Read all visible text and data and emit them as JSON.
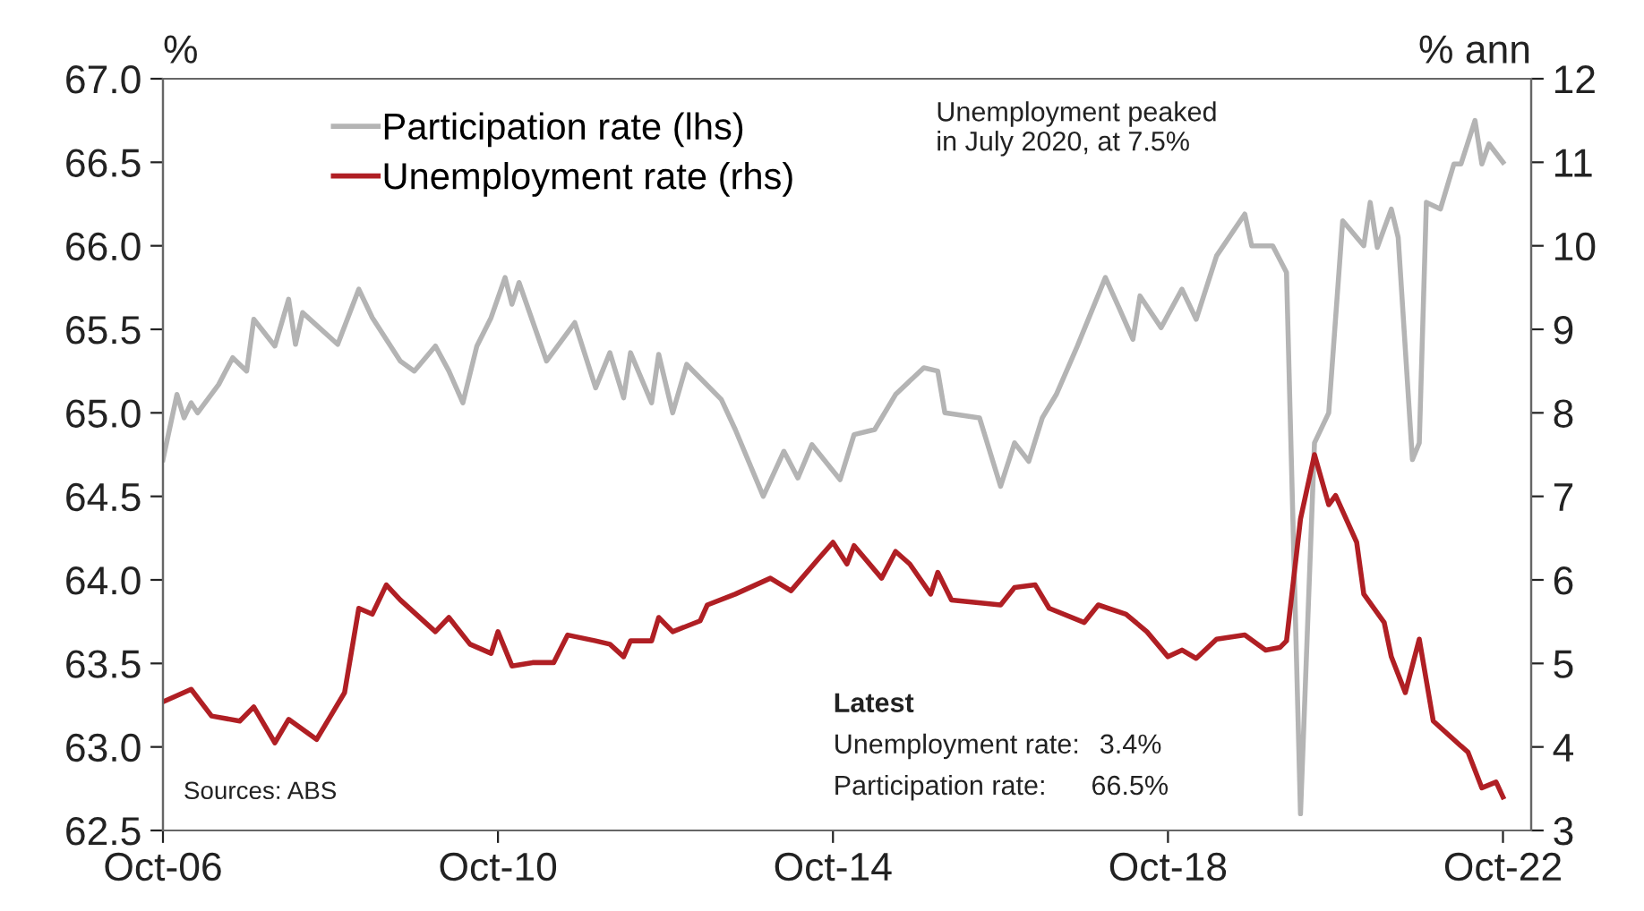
{
  "chart_data": {
    "type": "line",
    "ylabel": "%",
    "y2label": "% ann",
    "x": [
      "2006-10",
      "2006-12",
      "2007-01",
      "2007-02",
      "2007-03",
      "2007-06",
      "2007-08",
      "2007-10",
      "2007-11",
      "2008-02",
      "2008-04",
      "2008-05",
      "2008-06",
      "2008-11",
      "2009-02",
      "2009-04",
      "2009-08",
      "2009-10",
      "2010-01",
      "2010-03",
      "2010-05",
      "2010-07",
      "2010-09",
      "2010-11",
      "2010-12",
      "2011-01",
      "2011-05",
      "2011-09",
      "2011-12",
      "2012-02",
      "2012-04",
      "2012-05",
      "2012-08",
      "2012-09",
      "2012-11",
      "2013-01",
      "2013-06",
      "2013-08",
      "2013-12",
      "2014-03",
      "2014-05",
      "2014-07",
      "2014-11",
      "2015-01",
      "2015-04",
      "2015-07",
      "2015-11",
      "2016-01",
      "2016-02",
      "2016-07",
      "2016-10",
      "2016-12",
      "2017-02",
      "2017-04",
      "2017-06",
      "2017-09",
      "2018-01",
      "2018-03",
      "2018-05",
      "2018-06",
      "2018-09",
      "2018-12",
      "2019-02",
      "2019-05",
      "2019-09",
      "2019-10",
      "2020-01",
      "2020-03",
      "2020-05",
      "2020-07",
      "2020-09",
      "2020-11",
      "2021-02",
      "2021-03",
      "2021-04",
      "2021-06",
      "2021-07",
      "2021-09",
      "2021-10",
      "2021-11",
      "2022-01",
      "2022-03",
      "2022-04",
      "2022-06",
      "2022-07",
      "2022-08",
      "2022-10"
    ],
    "series": [
      {
        "name": "Participation rate (lhs)",
        "color": "#b4b4b4",
        "values": [
          64.72,
          65.11,
          64.97,
          65.06,
          65.0,
          65.17,
          65.33,
          65.25,
          65.56,
          65.4,
          65.68,
          65.41,
          65.6,
          65.41,
          65.74,
          65.57,
          65.31,
          65.25,
          65.4,
          65.25,
          65.06,
          65.4,
          65.57,
          65.81,
          65.65,
          65.78,
          65.31,
          65.54,
          65.15,
          65.36,
          65.09,
          65.36,
          65.06,
          65.35,
          65.0,
          65.29,
          65.08,
          64.9,
          64.5,
          64.77,
          64.61,
          64.81,
          64.6,
          64.87,
          64.9,
          65.11,
          65.27,
          65.25,
          65.0,
          64.97,
          64.56,
          64.82,
          64.71,
          64.97,
          65.11,
          65.4,
          65.81,
          65.63,
          65.44,
          65.7,
          65.51,
          65.74,
          65.56,
          65.94,
          66.19,
          66.0,
          66.0,
          65.84,
          62.6,
          64.82,
          65.0,
          66.15,
          66.0,
          66.26,
          65.99,
          66.22,
          66.05,
          64.72,
          64.82,
          66.26,
          66.22,
          66.49,
          66.49,
          66.75,
          66.49,
          66.61,
          66.5
        ]
      },
      {
        "name": "Unemployment rate (rhs)",
        "color": "#b01f24",
        "axis": "y2",
        "x": [
          "2006-10",
          "2007-02",
          "2007-05",
          "2007-09",
          "2007-11",
          "2008-02",
          "2008-04",
          "2008-08",
          "2008-10",
          "2008-12",
          "2009-02",
          "2009-04",
          "2009-06",
          "2009-08",
          "2010-01",
          "2010-03",
          "2010-06",
          "2010-09",
          "2010-10",
          "2010-12",
          "2011-03",
          "2011-06",
          "2011-08",
          "2011-12",
          "2012-02",
          "2012-04",
          "2012-05",
          "2012-08",
          "2012-09",
          "2012-11",
          "2013-03",
          "2013-04",
          "2013-08",
          "2014-01",
          "2014-04",
          "2014-08",
          "2014-10",
          "2014-12",
          "2015-01",
          "2015-05",
          "2015-07",
          "2015-09",
          "2015-12",
          "2016-01",
          "2016-03",
          "2016-10",
          "2016-12",
          "2017-03",
          "2017-05",
          "2017-10",
          "2017-12",
          "2018-04",
          "2018-07",
          "2018-10",
          "2018-12",
          "2019-02",
          "2019-05",
          "2019-09",
          "2019-12",
          "2020-02",
          "2020-03",
          "2020-05",
          "2020-07",
          "2020-09",
          "2020-10",
          "2021-01",
          "2021-02",
          "2021-05",
          "2021-06",
          "2021-08",
          "2021-10",
          "2021-12",
          "2022-04",
          "2022-05",
          "2022-07",
          "2022-09",
          "2022-10"
        ],
        "values": [
          4.54,
          4.69,
          4.37,
          4.31,
          4.48,
          4.05,
          4.33,
          4.09,
          4.37,
          4.65,
          5.66,
          5.59,
          5.94,
          5.76,
          5.38,
          5.55,
          5.23,
          5.12,
          5.38,
          4.97,
          5.01,
          5.01,
          5.34,
          5.27,
          5.23,
          5.08,
          5.27,
          5.27,
          5.55,
          5.38,
          5.51,
          5.7,
          5.83,
          6.02,
          5.87,
          6.26,
          6.45,
          6.19,
          6.41,
          6.02,
          6.34,
          6.19,
          5.83,
          6.09,
          5.76,
          5.7,
          5.91,
          5.94,
          5.66,
          5.49,
          5.7,
          5.59,
          5.38,
          5.08,
          5.16,
          5.06,
          5.29,
          5.34,
          5.16,
          5.19,
          5.27,
          6.73,
          7.5,
          6.9,
          7.01,
          6.45,
          5.83,
          5.49,
          5.08,
          4.65,
          5.29,
          4.31,
          4.01,
          3.94,
          3.51,
          3.58,
          3.4
        ]
      }
    ],
    "xlim": [
      "2006-10",
      "2023-02"
    ],
    "xticks": [
      {
        "value": "2006-10",
        "label": "Oct-06"
      },
      {
        "value": "2010-10",
        "label": "Oct-10"
      },
      {
        "value": "2014-10",
        "label": "Oct-14"
      },
      {
        "value": "2018-10",
        "label": "Oct-18"
      },
      {
        "value": "2022-10",
        "label": "Oct-22"
      }
    ],
    "ylim": [
      62.5,
      67.0
    ],
    "yticks": [
      {
        "value": 62.5,
        "label": "62.5"
      },
      {
        "value": 63.0,
        "label": "63.0"
      },
      {
        "value": 63.5,
        "label": "63.5"
      },
      {
        "value": 64.0,
        "label": "64.0"
      },
      {
        "value": 64.5,
        "label": "64.5"
      },
      {
        "value": 65.0,
        "label": "65.0"
      },
      {
        "value": 65.5,
        "label": "65.5"
      },
      {
        "value": 66.0,
        "label": "66.0"
      },
      {
        "value": 66.5,
        "label": "66.5"
      },
      {
        "value": 67.0,
        "label": "67.0"
      }
    ],
    "y2lim": [
      3,
      12
    ],
    "y2ticks": [
      3,
      4,
      5,
      6,
      7,
      8,
      9,
      10,
      11,
      12
    ],
    "grid": false,
    "legend": "top left",
    "line_style": "solid",
    "marker": "none",
    "annotations": [
      "Unemployment peaked\nin July 2020, at 7.5%",
      "Latest",
      "Unemployment rate:",
      "3.4%",
      "Participation rate:",
      "66.5%",
      "Sources: ABS"
    ]
  }
}
